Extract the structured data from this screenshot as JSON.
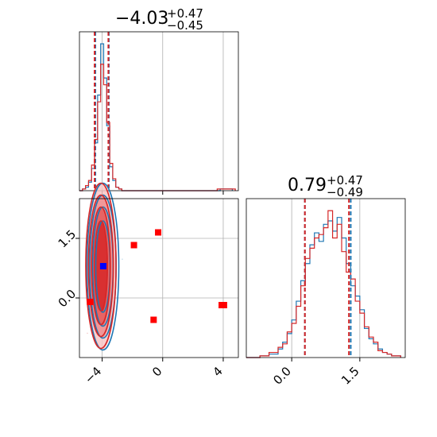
{
  "chart_data": {
    "type": "corner",
    "colors": {
      "series_a": "#1f77b4",
      "series_b": "#d62728",
      "truth_marker": "#0000ff",
      "outlier_marker": "#ff0000",
      "grid": "#b0b0b0"
    },
    "param1": {
      "title_value": "−4.03",
      "title_sup": "+0.47",
      "title_sub": "−0.45",
      "xlim": [
        -5.5,
        5.0
      ],
      "ticks": [
        {
          "v": -4,
          "label": "−4"
        },
        {
          "v": 0,
          "label": "0"
        },
        {
          "v": 4,
          "label": "4"
        }
      ],
      "quantile_lines_a": [
        -4.45,
        -3.56
      ],
      "quantile_lines_b": [
        -4.5,
        -3.59
      ],
      "hist_a": [
        [
          -5.5,
          0
        ],
        [
          -5.3,
          0.01
        ],
        [
          -5.1,
          0.02
        ],
        [
          -4.9,
          0.05
        ],
        [
          -4.7,
          0.13
        ],
        [
          -4.5,
          0.28
        ],
        [
          -4.3,
          0.56
        ],
        [
          -4.1,
          0.86
        ],
        [
          -3.9,
          0.66
        ],
        [
          -3.7,
          0.38
        ],
        [
          -3.5,
          0.14
        ],
        [
          -3.3,
          0.06
        ],
        [
          -3.1,
          0.02
        ],
        [
          -2.9,
          0.01
        ],
        [
          -2.7,
          0
        ],
        [
          3.8,
          0.01
        ],
        [
          4.6,
          0
        ]
      ],
      "hist_b": [
        [
          -5.5,
          0
        ],
        [
          -5.3,
          0.01
        ],
        [
          -5.1,
          0.03
        ],
        [
          -4.9,
          0.06
        ],
        [
          -4.7,
          0.15
        ],
        [
          -4.5,
          0.3
        ],
        [
          -4.3,
          0.52
        ],
        [
          -4.1,
          0.74
        ],
        [
          -3.9,
          0.62
        ],
        [
          -3.7,
          0.4
        ],
        [
          -3.5,
          0.16
        ],
        [
          -3.3,
          0.07
        ],
        [
          -3.1,
          0.02
        ],
        [
          -2.9,
          0.01
        ],
        [
          -2.7,
          0
        ],
        [
          3.6,
          0.01
        ],
        [
          4.8,
          0
        ]
      ]
    },
    "param2": {
      "title_value": "0.79",
      "title_sup": "+0.47",
      "title_sub": "−0.49",
      "xlim": [
        -1.0,
        2.5
      ],
      "ticks": [
        {
          "v": 0.0,
          "label": "0.0"
        },
        {
          "v": 1.5,
          "label": "1.5"
        }
      ],
      "quantile_lines_a": [
        0.29,
        1.3
      ],
      "quantile_lines_b": [
        0.29,
        1.26
      ],
      "hist_a": [
        [
          -1.0,
          0
        ],
        [
          -0.7,
          0.01
        ],
        [
          -0.5,
          0.02
        ],
        [
          -0.3,
          0.05
        ],
        [
          -0.2,
          0.09
        ],
        [
          -0.1,
          0.14
        ],
        [
          0.0,
          0.22
        ],
        [
          0.1,
          0.33
        ],
        [
          0.2,
          0.45
        ],
        [
          0.3,
          0.55
        ],
        [
          0.4,
          0.66
        ],
        [
          0.5,
          0.73
        ],
        [
          0.6,
          0.68
        ],
        [
          0.7,
          0.78
        ],
        [
          0.8,
          0.8
        ],
        [
          0.9,
          0.74
        ],
        [
          1.0,
          0.82
        ],
        [
          1.1,
          0.7
        ],
        [
          1.2,
          0.55
        ],
        [
          1.3,
          0.42
        ],
        [
          1.4,
          0.36
        ],
        [
          1.5,
          0.28
        ],
        [
          1.6,
          0.17
        ],
        [
          1.7,
          0.11
        ],
        [
          1.8,
          0.08
        ],
        [
          1.9,
          0.05
        ],
        [
          2.0,
          0.03
        ],
        [
          2.1,
          0.02
        ],
        [
          2.2,
          0.01
        ],
        [
          2.4,
          0
        ]
      ],
      "hist_b": [
        [
          -1.0,
          0
        ],
        [
          -0.7,
          0.01
        ],
        [
          -0.5,
          0.03
        ],
        [
          -0.3,
          0.06
        ],
        [
          -0.2,
          0.08
        ],
        [
          -0.1,
          0.15
        ],
        [
          0.0,
          0.2
        ],
        [
          0.1,
          0.3
        ],
        [
          0.2,
          0.42
        ],
        [
          0.3,
          0.58
        ],
        [
          0.4,
          0.64
        ],
        [
          0.5,
          0.7
        ],
        [
          0.6,
          0.72
        ],
        [
          0.7,
          0.76
        ],
        [
          0.8,
          0.86
        ],
        [
          0.9,
          0.7
        ],
        [
          1.0,
          0.78
        ],
        [
          1.1,
          0.62
        ],
        [
          1.2,
          0.5
        ],
        [
          1.3,
          0.46
        ],
        [
          1.4,
          0.33
        ],
        [
          1.5,
          0.26
        ],
        [
          1.6,
          0.18
        ],
        [
          1.7,
          0.12
        ],
        [
          1.8,
          0.09
        ],
        [
          1.9,
          0.04
        ],
        [
          2.0,
          0.03
        ],
        [
          2.1,
          0.02
        ],
        [
          2.2,
          0.01
        ],
        [
          2.4,
          0
        ]
      ]
    },
    "joint": {
      "xlim": [
        -5.5,
        5.0
      ],
      "ylim": [
        -1.5,
        2.5
      ],
      "x_ticks": [
        {
          "v": -4,
          "label": "−4"
        },
        {
          "v": 0,
          "label": "0"
        },
        {
          "v": 4,
          "label": "4"
        }
      ],
      "y_ticks": [
        {
          "v": 0.0,
          "label": "0.0"
        },
        {
          "v": 1.5,
          "label": "1.5"
        }
      ],
      "center": [
        -4.03,
        0.79
      ],
      "contour_widths": [
        0.42,
        0.62,
        0.82,
        1.0
      ],
      "contour_heights": [
        1.15,
        1.5,
        1.8,
        2.1
      ],
      "truth_point": [
        -3.93,
        0.8
      ],
      "outlier_points": [
        [
          -0.3,
          1.65
        ],
        [
          -1.9,
          1.33
        ],
        [
          -4.8,
          -0.1
        ],
        [
          -0.6,
          -0.55
        ],
        [
          3.9,
          -0.18
        ],
        [
          4.05,
          -0.18
        ]
      ]
    }
  }
}
